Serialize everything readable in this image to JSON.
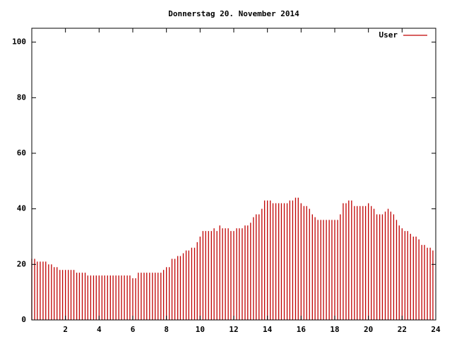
{
  "chart_data": {
    "type": "impulse",
    "title": "Donnerstag 20. November 2014",
    "series": [
      {
        "name": "User",
        "color": "#c00000",
        "x": [
          0,
          0.17,
          0.33,
          0.5,
          0.67,
          0.83,
          1,
          1.17,
          1.33,
          1.5,
          1.67,
          1.83,
          2,
          2.17,
          2.33,
          2.5,
          2.67,
          2.83,
          3,
          3.17,
          3.33,
          3.5,
          3.67,
          3.83,
          4,
          4.17,
          4.33,
          4.5,
          4.67,
          4.83,
          5,
          5.17,
          5.33,
          5.5,
          5.67,
          5.83,
          6,
          6.17,
          6.33,
          6.5,
          6.67,
          6.83,
          7,
          7.17,
          7.33,
          7.5,
          7.67,
          7.83,
          8,
          8.17,
          8.33,
          8.5,
          8.67,
          8.83,
          9,
          9.17,
          9.33,
          9.5,
          9.67,
          9.83,
          10,
          10.17,
          10.33,
          10.5,
          10.67,
          10.83,
          11,
          11.17,
          11.33,
          11.5,
          11.67,
          11.83,
          12,
          12.17,
          12.33,
          12.5,
          12.67,
          12.83,
          13,
          13.17,
          13.33,
          13.5,
          13.67,
          13.83,
          14,
          14.17,
          14.33,
          14.5,
          14.67,
          14.83,
          15,
          15.17,
          15.33,
          15.5,
          15.67,
          15.83,
          16,
          16.17,
          16.33,
          16.5,
          16.67,
          16.83,
          17,
          17.17,
          17.33,
          17.5,
          17.67,
          17.83,
          18,
          18.17,
          18.33,
          18.5,
          18.67,
          18.83,
          19,
          19.17,
          19.33,
          19.5,
          19.67,
          19.83,
          20,
          20.17,
          20.33,
          20.5,
          20.67,
          20.83,
          21,
          21.17,
          21.33,
          21.5,
          21.67,
          21.83,
          22,
          22.17,
          22.33,
          22.5,
          22.67,
          22.83,
          23,
          23.17,
          23.33,
          23.5,
          23.67,
          23.83
        ],
        "values": [
          22,
          22,
          21,
          21,
          21,
          21,
          20,
          20,
          19,
          19,
          18,
          18,
          18,
          18,
          18,
          18,
          17,
          17,
          17,
          17,
          16,
          16,
          16,
          16,
          16,
          16,
          16,
          16,
          16,
          16,
          16,
          16,
          16,
          16,
          16,
          16,
          15,
          15,
          17,
          17,
          17,
          17,
          17,
          17,
          17,
          17,
          17,
          18,
          19,
          19,
          22,
          22,
          23,
          23,
          24,
          25,
          25,
          26,
          26,
          28,
          30,
          32,
          32,
          32,
          32,
          33,
          32,
          34,
          33,
          33,
          33,
          32,
          32,
          33,
          33,
          33,
          34,
          34,
          35,
          37,
          38,
          38,
          40,
          43,
          43,
          43,
          42,
          42,
          42,
          42,
          42,
          42,
          43,
          43,
          44,
          44,
          42,
          41,
          41,
          40,
          38,
          37,
          36,
          36,
          36,
          36,
          36,
          36,
          36,
          36,
          38,
          42,
          42,
          43,
          43,
          41,
          41,
          41,
          41,
          41,
          42,
          41,
          40,
          38,
          38,
          38,
          39,
          40,
          39,
          38,
          36,
          34,
          33,
          32,
          32,
          31,
          30,
          30,
          29,
          27,
          27,
          26,
          26,
          25
        ]
      }
    ],
    "xlim": [
      0,
      24
    ],
    "xticks": [
      2,
      4,
      6,
      8,
      10,
      12,
      14,
      16,
      18,
      20,
      22,
      24
    ],
    "ylim": [
      0,
      105
    ],
    "yticks": [
      0,
      20,
      40,
      60,
      80,
      100
    ],
    "legend": "upper right"
  }
}
